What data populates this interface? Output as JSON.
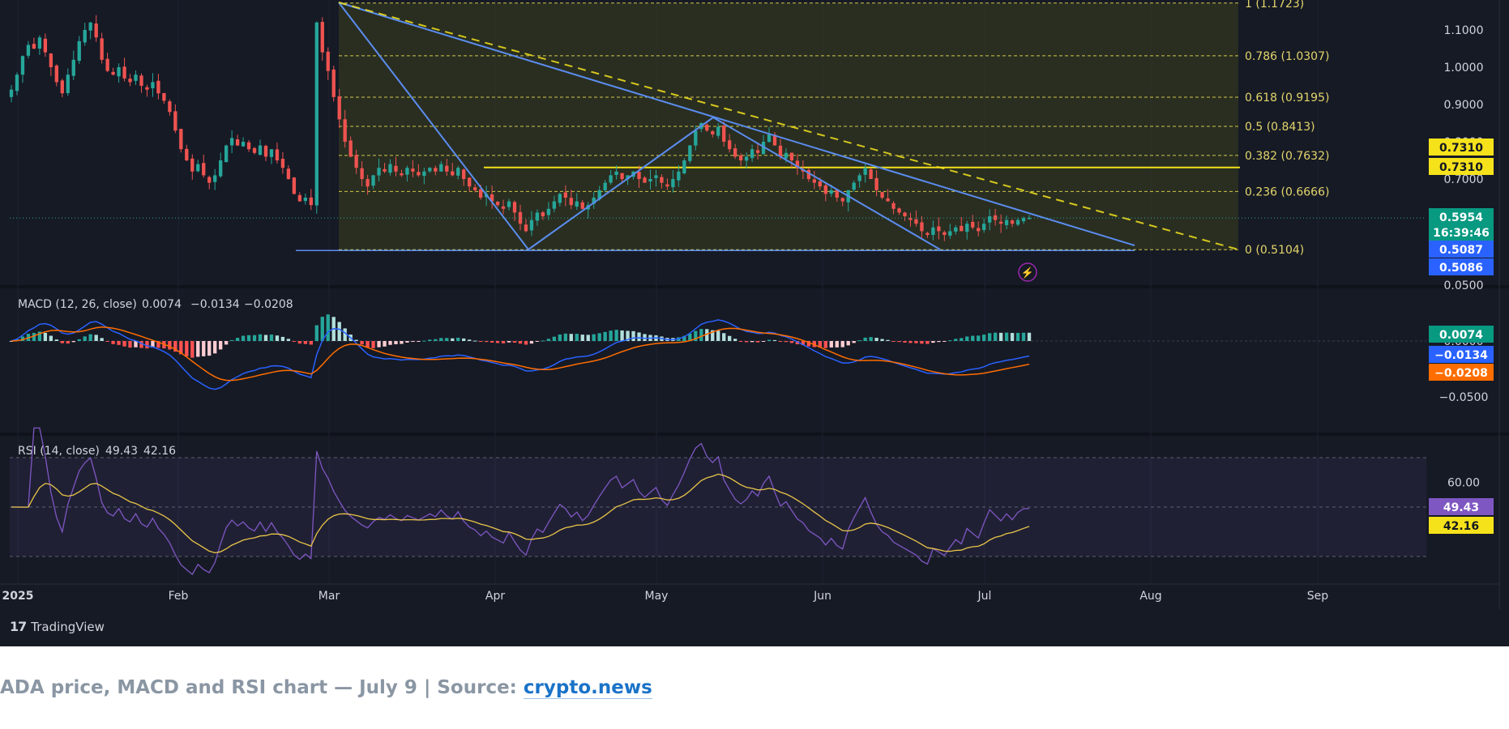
{
  "caption": {
    "text": "ADA price, MACD and RSI chart — July 9 | Source: ",
    "link": "crypto.news"
  },
  "branding": {
    "logo": "TradingView"
  },
  "colors": {
    "background": "#161a25",
    "bull": "#26a69a",
    "bear": "#ef5350",
    "macd_line": "#2962ff",
    "signal_line": "#ff6d00",
    "rsi_line": "#7e57c2",
    "rsi_ma": "#e8c547",
    "fib": "#d4c64a",
    "level_line": "#f5e21b",
    "trend_line": "#5b8def"
  },
  "chart_data": [
    {
      "panel": "price",
      "type": "candlestick",
      "symbol": "ADA",
      "y_axis_ticks": [
        0.7,
        0.8,
        0.9,
        1.0,
        1.1
      ],
      "y_axis_tick_labels": [
        "0.7000",
        "0.8000",
        "0.9000",
        "1.0000",
        "1.1000"
      ],
      "x_axis_ticks": [
        "2025",
        "Feb",
        "Mar",
        "Apr",
        "May",
        "Jun",
        "Jul",
        "Aug",
        "Sep"
      ],
      "fibonacci": [
        {
          "label": "1 (1.1723)",
          "value": 1.1723
        },
        {
          "label": "0.786 (1.0307)",
          "value": 1.0307
        },
        {
          "label": "0.618 (0.9195)",
          "value": 0.9195
        },
        {
          "label": "0.5 (0.8413)",
          "value": 0.8413
        },
        {
          "label": "0.382 (0.7632)",
          "value": 0.7632
        },
        {
          "label": "0.236 (0.6666)",
          "value": 0.6666
        },
        {
          "label": "0 (0.5104)",
          "value": 0.5104
        }
      ],
      "horizontal_level": 0.731,
      "price_tags": [
        {
          "text": "0.7310",
          "value": 0.731,
          "style": "yellow"
        },
        {
          "text": "0.7310",
          "value": 0.731,
          "style": "yellow"
        },
        {
          "text": "0.5954",
          "value": 0.5954,
          "style": "green"
        },
        {
          "text": "16:39:46",
          "value": 0.5954,
          "style": "green-sub"
        },
        {
          "text": "0.5087",
          "value": 0.5087,
          "style": "blue"
        },
        {
          "text": "0.5086",
          "value": 0.5086,
          "style": "blue"
        }
      ],
      "current_price": 0.5954,
      "countdown": "16:39:46",
      "closes": [
        0.94,
        0.98,
        1.03,
        1.06,
        1.05,
        1.08,
        1.04,
        1.0,
        0.96,
        0.93,
        0.98,
        1.02,
        1.07,
        1.1,
        1.12,
        1.08,
        1.02,
        0.99,
        0.98,
        1.0,
        0.97,
        0.96,
        0.98,
        0.95,
        0.94,
        0.96,
        0.93,
        0.91,
        0.88,
        0.83,
        0.78,
        0.75,
        0.72,
        0.74,
        0.71,
        0.69,
        0.71,
        0.75,
        0.79,
        0.81,
        0.79,
        0.8,
        0.78,
        0.77,
        0.79,
        0.76,
        0.78,
        0.75,
        0.73,
        0.7,
        0.66,
        0.64,
        0.65,
        0.63,
        1.12,
        1.04,
        0.99,
        0.92,
        0.86,
        0.8,
        0.76,
        0.73,
        0.7,
        0.68,
        0.71,
        0.73,
        0.72,
        0.74,
        0.72,
        0.71,
        0.73,
        0.72,
        0.71,
        0.72,
        0.73,
        0.72,
        0.74,
        0.72,
        0.71,
        0.73,
        0.7,
        0.68,
        0.67,
        0.65,
        0.66,
        0.64,
        0.63,
        0.62,
        0.64,
        0.61,
        0.58,
        0.56,
        0.59,
        0.61,
        0.6,
        0.62,
        0.64,
        0.66,
        0.65,
        0.63,
        0.64,
        0.62,
        0.63,
        0.65,
        0.67,
        0.69,
        0.71,
        0.72,
        0.7,
        0.71,
        0.72,
        0.7,
        0.69,
        0.7,
        0.71,
        0.69,
        0.68,
        0.7,
        0.72,
        0.75,
        0.79,
        0.83,
        0.85,
        0.83,
        0.82,
        0.84,
        0.8,
        0.78,
        0.76,
        0.75,
        0.76,
        0.78,
        0.77,
        0.8,
        0.82,
        0.79,
        0.76,
        0.77,
        0.75,
        0.73,
        0.72,
        0.7,
        0.69,
        0.68,
        0.66,
        0.67,
        0.65,
        0.64,
        0.67,
        0.69,
        0.71,
        0.73,
        0.7,
        0.67,
        0.65,
        0.64,
        0.62,
        0.61,
        0.6,
        0.59,
        0.58,
        0.56,
        0.55,
        0.57,
        0.56,
        0.55,
        0.56,
        0.57,
        0.56,
        0.58,
        0.57,
        0.56,
        0.58,
        0.6,
        0.59,
        0.58,
        0.59,
        0.58,
        0.59,
        0.595,
        0.5954
      ]
    },
    {
      "panel": "macd",
      "type": "line",
      "title": "MACD (12, 26, close)",
      "values_text": [
        "0.0074",
        "−0.0134",
        "−0.0208"
      ],
      "histogram_value": 0.0074,
      "macd_value": -0.0134,
      "signal_value": -0.0208,
      "y_axis_ticks": [
        0.05,
        0.0,
        -0.05
      ],
      "y_axis_tick_labels": [
        "0.0500",
        "0.0000",
        "−0.0500"
      ],
      "tags": [
        {
          "text": "0.0074",
          "value": 0.0074,
          "style": "teal"
        },
        {
          "text": "−0.0134",
          "value": -0.0134,
          "style": "blue"
        },
        {
          "text": "−0.0208",
          "value": -0.0208,
          "style": "orange"
        }
      ]
    },
    {
      "panel": "rsi",
      "type": "line",
      "title": "RSI (14, close)",
      "values_text": [
        "49.43",
        "42.16"
      ],
      "rsi_value": 49.43,
      "rsi_ma_value": 42.16,
      "y_axis_ticks": [
        60.0
      ],
      "y_axis_tick_labels": [
        "60.00"
      ],
      "bands": [
        70,
        50,
        30
      ],
      "tags": [
        {
          "text": "49.43",
          "value": 49.43,
          "style": "purple"
        },
        {
          "text": "42.16",
          "value": 42.16,
          "style": "yellow"
        }
      ]
    }
  ]
}
